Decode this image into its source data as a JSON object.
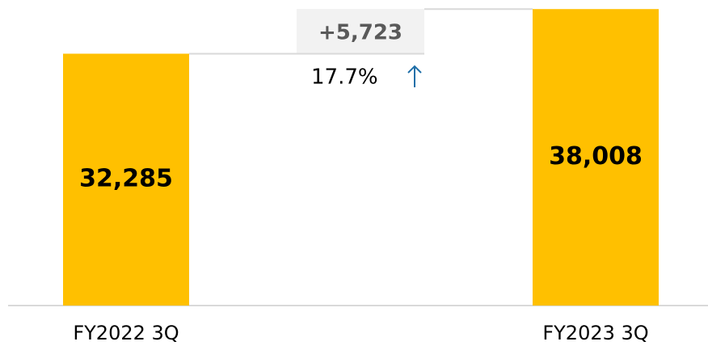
{
  "chart_data": {
    "type": "bar",
    "categories": [
      "FY2022 3Q",
      "FY2023 3Q"
    ],
    "values": [
      32285,
      38008
    ],
    "value_labels": [
      "32,285",
      "38,008"
    ],
    "color": "#ffc000",
    "ylim": [
      0,
      40000
    ],
    "annotations": [
      "+5,723",
      "17.7%"
    ]
  }
}
